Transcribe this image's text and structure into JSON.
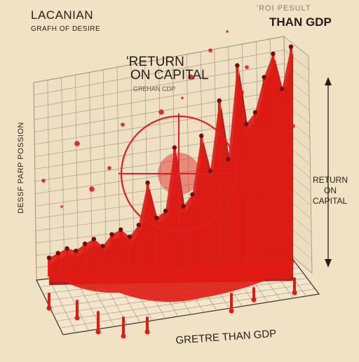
{
  "chart_data": {
    "type": "area",
    "title": "LACANIAN",
    "subtitle": "GRAFH OF DESIRE",
    "top_right_label": {
      "line1": "'ROI PESULT",
      "line2": "THAN GDP"
    },
    "center_label": {
      "line1": "'RETURN",
      "line2": "ON CAPITAL",
      "line3": "GREHAN CDP"
    },
    "right_axis_label": {
      "line1": "RETURN",
      "line2": "ON",
      "line3": "CAPITAL"
    },
    "ylabel": "DESSF PARP POSSION",
    "xlabel": "GRETRE THAN GDP",
    "grid": true,
    "x": [
      1,
      2,
      3,
      4,
      5,
      6,
      7,
      8,
      9,
      10,
      11,
      12,
      13,
      14,
      15,
      16,
      17,
      18,
      19,
      20,
      21,
      22,
      23,
      24,
      25,
      26,
      27,
      28
    ],
    "series": [
      {
        "values": [
          8,
          10,
          12,
          11,
          14,
          16,
          13,
          18,
          20,
          17,
          22,
          40,
          25,
          28,
          55,
          30,
          35,
          60,
          45,
          75,
          50,
          90,
          65,
          70,
          85,
          95,
          80,
          98
        ]
      }
    ],
    "colors": {
      "background": "#f1e2c6",
      "grid": "#9a8d7f",
      "fill": "#e01b14",
      "fill_dark": "#7a0a0a",
      "crosshair": "#e02020"
    }
  }
}
